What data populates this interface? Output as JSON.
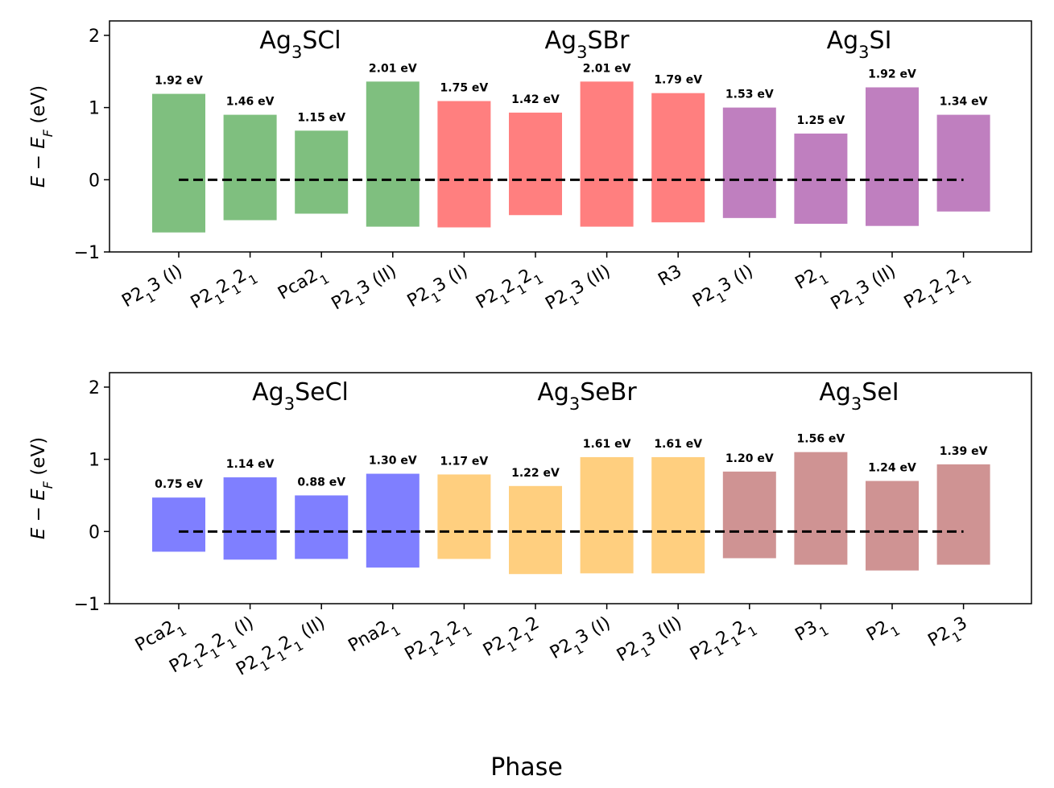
{
  "xlabel": "Phase",
  "chart_data": [
    {
      "type": "bar",
      "ylabel": "E − E_F (eV)",
      "ylim": [
        -1,
        2.2
      ],
      "yticks": [
        -1,
        0,
        1,
        2
      ],
      "reference_line": 0,
      "groups": [
        {
          "name": "Ag3SCl",
          "formula": [
            [
              "Ag",
              ""
            ],
            [
              "3",
              "sub"
            ],
            [
              "SCl",
              ""
            ]
          ],
          "color": "#7fbf7f"
        },
        {
          "name": "Ag3SBr",
          "formula": [
            [
              "Ag",
              ""
            ],
            [
              "3",
              "sub"
            ],
            [
              "SBr",
              ""
            ]
          ],
          "color": "#ff7f7f"
        },
        {
          "name": "Ag3SI",
          "formula": [
            [
              "Ag",
              ""
            ],
            [
              "3",
              "sub"
            ],
            [
              "SI",
              ""
            ]
          ],
          "color": "#bf7fbf"
        }
      ],
      "bars": [
        {
          "group": 0,
          "category": [
            [
              "P2",
              ""
            ],
            [
              "1",
              "sub"
            ],
            [
              "3 (I)",
              ""
            ]
          ],
          "low": -0.73,
          "high": 1.19,
          "gap_label": "1.92 eV"
        },
        {
          "group": 0,
          "category": [
            [
              "P2",
              ""
            ],
            [
              "1",
              "sub"
            ],
            [
              "2",
              ""
            ],
            [
              "1",
              "sub"
            ],
            [
              "2",
              ""
            ],
            [
              "1",
              "sub"
            ]
          ],
          "low": -0.56,
          "high": 0.9,
          "gap_label": "1.46 eV"
        },
        {
          "group": 0,
          "category": [
            [
              "Pca2",
              ""
            ],
            [
              "1",
              "sub"
            ]
          ],
          "low": -0.47,
          "high": 0.68,
          "gap_label": "1.15 eV"
        },
        {
          "group": 0,
          "category": [
            [
              "P2",
              ""
            ],
            [
              "1",
              "sub"
            ],
            [
              "3 (II)",
              ""
            ]
          ],
          "low": -0.65,
          "high": 1.36,
          "gap_label": "2.01 eV"
        },
        {
          "group": 1,
          "category": [
            [
              "P2",
              ""
            ],
            [
              "1",
              "sub"
            ],
            [
              "3 (I)",
              ""
            ]
          ],
          "low": -0.66,
          "high": 1.09,
          "gap_label": "1.75 eV"
        },
        {
          "group": 1,
          "category": [
            [
              "P2",
              ""
            ],
            [
              "1",
              "sub"
            ],
            [
              "2",
              ""
            ],
            [
              "1",
              "sub"
            ],
            [
              "2",
              ""
            ],
            [
              "1",
              "sub"
            ]
          ],
          "low": -0.49,
          "high": 0.93,
          "gap_label": "1.42 eV"
        },
        {
          "group": 1,
          "category": [
            [
              "P2",
              ""
            ],
            [
              "1",
              "sub"
            ],
            [
              "3 (II)",
              ""
            ]
          ],
          "low": -0.65,
          "high": 1.36,
          "gap_label": "2.01 eV"
        },
        {
          "group": 1,
          "category": [
            [
              "R3",
              ""
            ]
          ],
          "low": -0.59,
          "high": 1.2,
          "gap_label": "1.79 eV"
        },
        {
          "group": 2,
          "category": [
            [
              "P2",
              ""
            ],
            [
              "1",
              "sub"
            ],
            [
              "3 (I)",
              ""
            ]
          ],
          "low": -0.53,
          "high": 1.0,
          "gap_label": "1.53 eV"
        },
        {
          "group": 2,
          "category": [
            [
              "P2",
              ""
            ],
            [
              "1",
              "sub"
            ]
          ],
          "low": -0.61,
          "high": 0.64,
          "gap_label": "1.25 eV"
        },
        {
          "group": 2,
          "category": [
            [
              "P2",
              ""
            ],
            [
              "1",
              "sub"
            ],
            [
              "3 (II)",
              ""
            ]
          ],
          "low": -0.64,
          "high": 1.28,
          "gap_label": "1.92 eV"
        },
        {
          "group": 2,
          "category": [
            [
              "P2",
              ""
            ],
            [
              "1",
              "sub"
            ],
            [
              "2",
              ""
            ],
            [
              "1",
              "sub"
            ],
            [
              "2",
              ""
            ],
            [
              "1",
              "sub"
            ]
          ],
          "low": -0.44,
          "high": 0.9,
          "gap_label": "1.34 eV"
        }
      ]
    },
    {
      "type": "bar",
      "ylabel": "E − E_F (eV)",
      "ylim": [
        -1,
        2.2
      ],
      "yticks": [
        -1,
        0,
        1,
        2
      ],
      "reference_line": 0,
      "groups": [
        {
          "name": "Ag3SeCl",
          "formula": [
            [
              "Ag",
              ""
            ],
            [
              "3",
              "sub"
            ],
            [
              "SeCl",
              ""
            ]
          ],
          "color": "#7f7fff"
        },
        {
          "name": "Ag3SeBr",
          "formula": [
            [
              "Ag",
              ""
            ],
            [
              "3",
              "sub"
            ],
            [
              "SeBr",
              ""
            ]
          ],
          "color": "#ffcf7f"
        },
        {
          "name": "Ag3SeI",
          "formula": [
            [
              "Ag",
              ""
            ],
            [
              "3",
              "sub"
            ],
            [
              "SeI",
              ""
            ]
          ],
          "color": "#cf9393"
        }
      ],
      "bars": [
        {
          "group": 0,
          "category": [
            [
              "Pca2",
              ""
            ],
            [
              "1",
              "sub"
            ]
          ],
          "low": -0.28,
          "high": 0.47,
          "gap_label": "0.75 eV"
        },
        {
          "group": 0,
          "category": [
            [
              "P2",
              ""
            ],
            [
              "1",
              "sub"
            ],
            [
              "2",
              ""
            ],
            [
              "1",
              "sub"
            ],
            [
              "2",
              ""
            ],
            [
              "1",
              "sub"
            ],
            [
              " (I)",
              ""
            ]
          ],
          "low": -0.39,
          "high": 0.75,
          "gap_label": "1.14 eV"
        },
        {
          "group": 0,
          "category": [
            [
              "P2",
              ""
            ],
            [
              "1",
              "sub"
            ],
            [
              "2",
              ""
            ],
            [
              "1",
              "sub"
            ],
            [
              "2",
              ""
            ],
            [
              "1",
              "sub"
            ],
            [
              " (II)",
              ""
            ]
          ],
          "low": -0.38,
          "high": 0.5,
          "gap_label": "0.88 eV"
        },
        {
          "group": 0,
          "category": [
            [
              "Pna2",
              ""
            ],
            [
              "1",
              "sub"
            ]
          ],
          "low": -0.5,
          "high": 0.8,
          "gap_label": "1.30 eV"
        },
        {
          "group": 1,
          "category": [
            [
              "P2",
              ""
            ],
            [
              "1",
              "sub"
            ],
            [
              "2",
              ""
            ],
            [
              "1",
              "sub"
            ],
            [
              "2",
              ""
            ],
            [
              "1",
              "sub"
            ]
          ],
          "low": -0.38,
          "high": 0.79,
          "gap_label": "1.17 eV"
        },
        {
          "group": 1,
          "category": [
            [
              "P2",
              ""
            ],
            [
              "1",
              "sub"
            ],
            [
              "2",
              ""
            ],
            [
              "1",
              "sub"
            ],
            [
              "2",
              ""
            ]
          ],
          "low": -0.59,
          "high": 0.63,
          "gap_label": "1.22 eV"
        },
        {
          "group": 1,
          "category": [
            [
              "P2",
              ""
            ],
            [
              "1",
              "sub"
            ],
            [
              "3 (I)",
              ""
            ]
          ],
          "low": -0.58,
          "high": 1.03,
          "gap_label": "1.61 eV"
        },
        {
          "group": 1,
          "category": [
            [
              "P2",
              ""
            ],
            [
              "1",
              "sub"
            ],
            [
              "3 (II)",
              ""
            ]
          ],
          "low": -0.58,
          "high": 1.03,
          "gap_label": "1.61 eV"
        },
        {
          "group": 2,
          "category": [
            [
              "P2",
              ""
            ],
            [
              "1",
              "sub"
            ],
            [
              "2",
              ""
            ],
            [
              "1",
              "sub"
            ],
            [
              "2",
              ""
            ],
            [
              "1",
              "sub"
            ]
          ],
          "low": -0.37,
          "high": 0.83,
          "gap_label": "1.20 eV"
        },
        {
          "group": 2,
          "category": [
            [
              "P3",
              ""
            ],
            [
              "1",
              "sub"
            ]
          ],
          "low": -0.46,
          "high": 1.1,
          "gap_label": "1.56 eV"
        },
        {
          "group": 2,
          "category": [
            [
              "P2",
              ""
            ],
            [
              "1",
              "sub"
            ]
          ],
          "low": -0.54,
          "high": 0.7,
          "gap_label": "1.24 eV"
        },
        {
          "group": 2,
          "category": [
            [
              "P2",
              ""
            ],
            [
              "1",
              "sub"
            ],
            [
              "3",
              ""
            ]
          ],
          "low": -0.46,
          "high": 0.93,
          "gap_label": "1.39 eV"
        }
      ]
    }
  ]
}
